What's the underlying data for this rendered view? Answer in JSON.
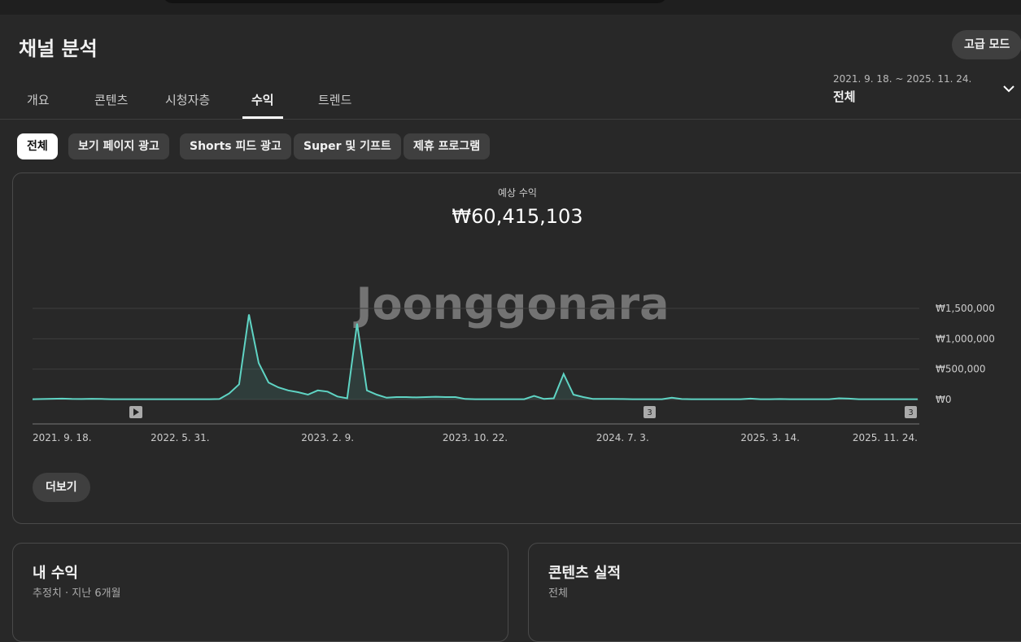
{
  "header": {
    "title": "채널 분석",
    "advanced_button": "고급 모드"
  },
  "tabs": [
    "개요",
    "콘텐츠",
    "시청자층",
    "수익",
    "트렌드"
  ],
  "date_range": {
    "range": "2021. 9. 18. ~ 2025. 11. 24.",
    "scope": "전체"
  },
  "chips": [
    "전체",
    "보기 페이지 광고",
    "Shorts 피드 광고",
    "Super 및 기프트",
    "제휴 프로그램"
  ],
  "watermark": "Joonggonara",
  "markers": [
    "3",
    "3"
  ],
  "more_button": "더보기",
  "cards": [
    {
      "title": "내 수익",
      "subtitle": "추정치 · 지난 6개월"
    },
    {
      "title": "콘텐츠 실적",
      "subtitle": "전체"
    }
  ],
  "chart_data": {
    "type": "line",
    "title": "예상 수익",
    "total": "₩60,415,103",
    "categories": [
      "2021. 9. 18.",
      null,
      null,
      null,
      null,
      null,
      null,
      null,
      null,
      null,
      null,
      null,
      null,
      null,
      null,
      "2022. 5. 31.",
      null,
      null,
      null,
      null,
      null,
      null,
      null,
      null,
      null,
      null,
      null,
      null,
      null,
      null,
      "2023. 2. 9.",
      null,
      null,
      null,
      null,
      null,
      null,
      null,
      null,
      null,
      null,
      null,
      null,
      null,
      null,
      "2023. 10. 22.",
      null,
      null,
      null,
      null,
      null,
      null,
      null,
      null,
      null,
      null,
      null,
      null,
      null,
      null,
      "2024. 7. 3.",
      null,
      null,
      null,
      null,
      null,
      null,
      null,
      null,
      null,
      null,
      null,
      null,
      null,
      null,
      "2025. 3. 14.",
      null,
      null,
      null,
      null,
      null,
      null,
      null,
      null,
      null,
      null,
      null,
      null,
      null,
      null,
      "2025. 11. 24."
    ],
    "series": [
      {
        "name": "예상 수익",
        "color": "#5fd4c4",
        "values": [
          5000,
          8000,
          12000,
          15000,
          10000,
          8000,
          12000,
          10000,
          6000,
          5000,
          5000,
          5000,
          6000,
          5000,
          5000,
          5000,
          6000,
          5000,
          5000,
          8000,
          100000,
          250000,
          1400000,
          600000,
          280000,
          200000,
          150000,
          120000,
          80000,
          150000,
          130000,
          50000,
          20000,
          1250000,
          150000,
          80000,
          30000,
          40000,
          40000,
          35000,
          40000,
          45000,
          40000,
          40000,
          10000,
          5000,
          5000,
          5000,
          5000,
          5000,
          5000,
          60000,
          10000,
          20000,
          420000,
          80000,
          40000,
          10000,
          10000,
          10000,
          8000,
          5000,
          5000,
          5000,
          6000,
          30000,
          8000,
          5000,
          5000,
          5000,
          6000,
          5000,
          5000,
          15000,
          5000,
          5000,
          8000,
          5000,
          6000,
          5000,
          5000,
          5000,
          20000,
          15000,
          5000,
          5000,
          6000,
          5000,
          5000,
          5000,
          5000
        ]
      }
    ],
    "ylim": [
      0,
      1500000
    ],
    "yticks": [
      {
        "value": 0,
        "label": "₩0"
      },
      {
        "value": 500000,
        "label": "₩500,000"
      },
      {
        "value": 1000000,
        "label": "₩1,000,000"
      },
      {
        "value": 1500000,
        "label": "₩1,500,000"
      }
    ],
    "grid": true
  }
}
